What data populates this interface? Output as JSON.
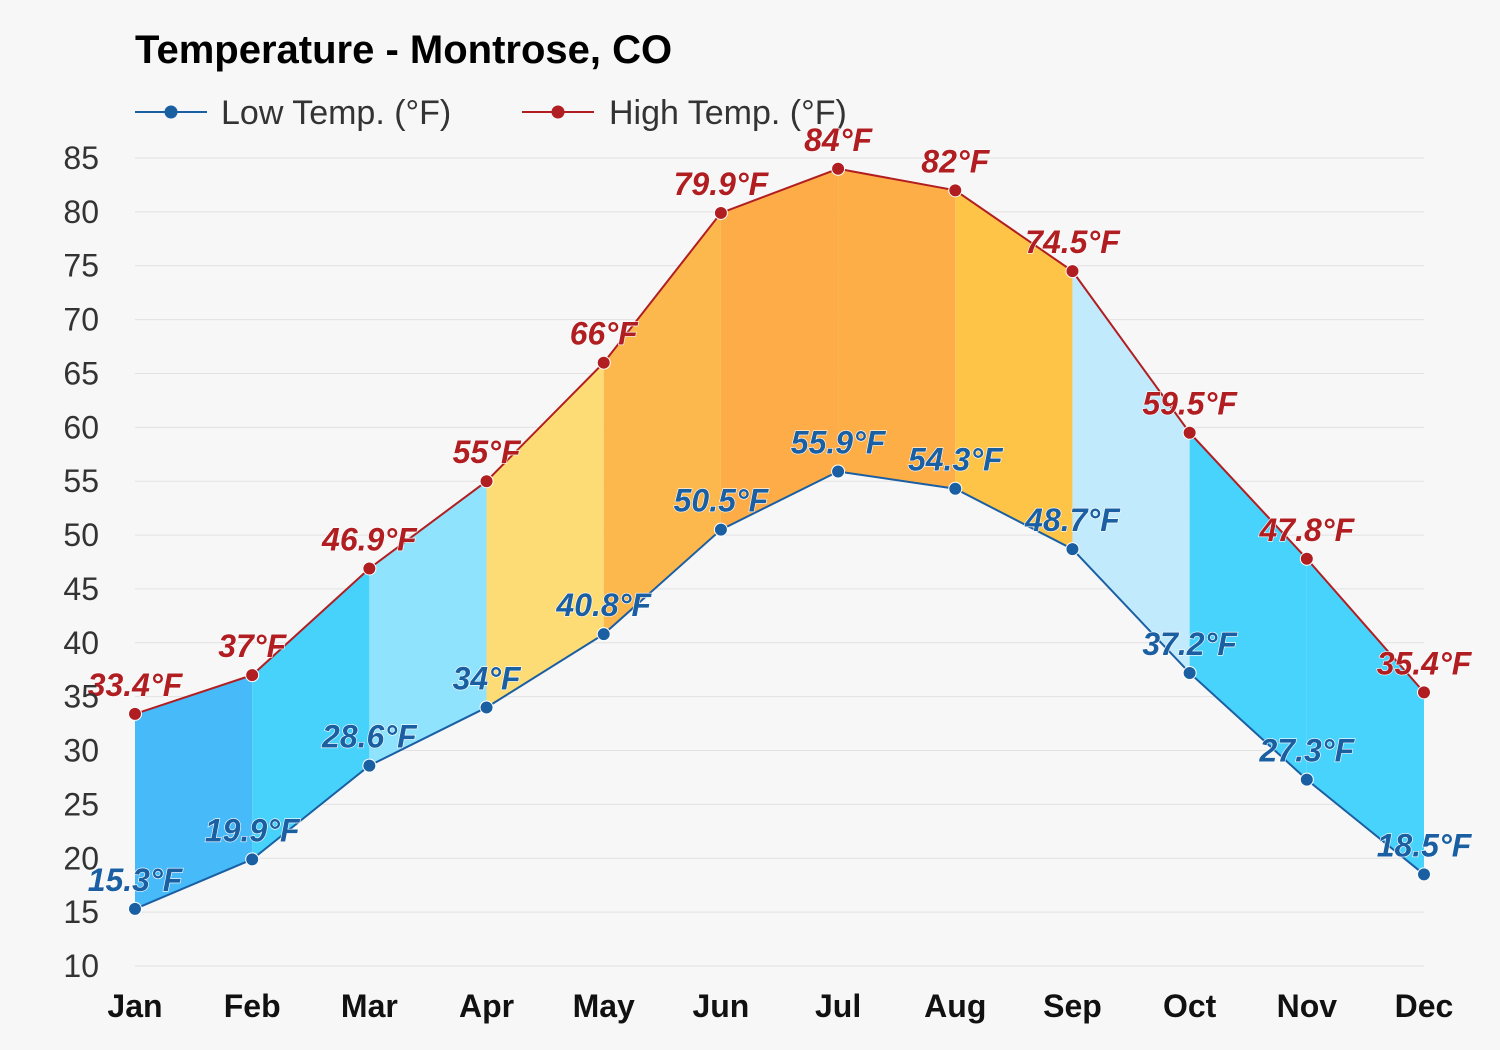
{
  "chart_data": {
    "type": "line",
    "title": "Temperature - Montrose, CO",
    "xlabel": "",
    "ylabel": "",
    "categories": [
      "Jan",
      "Feb",
      "Mar",
      "Apr",
      "May",
      "Jun",
      "Jul",
      "Aug",
      "Sep",
      "Oct",
      "Nov",
      "Dec"
    ],
    "yticks": [
      10,
      15,
      20,
      25,
      30,
      35,
      40,
      45,
      50,
      55,
      60,
      65,
      70,
      75,
      80,
      85
    ],
    "ylim": [
      10,
      85
    ],
    "grid": true,
    "legend_position": "top-left",
    "series": [
      {
        "name": "Low Temp. (°F)",
        "color": "#1b5fa3",
        "values": [
          15.3,
          19.9,
          28.6,
          34,
          40.8,
          50.5,
          55.9,
          54.3,
          48.7,
          37.2,
          27.3,
          18.5
        ],
        "labels": [
          "15.3°F",
          "19.9°F",
          "28.6°F",
          "34°F",
          "40.8°F",
          "50.5°F",
          "55.9°F",
          "54.3°F",
          "48.7°F",
          "37.2°F",
          "27.3°F",
          "18.5°F"
        ]
      },
      {
        "name": "High Temp. (°F)",
        "color": "#b11e22",
        "values": [
          33.4,
          37,
          46.9,
          55,
          66,
          79.9,
          84,
          82,
          74.5,
          59.5,
          47.8,
          35.4
        ],
        "labels": [
          "33.4°F",
          "37°F",
          "46.9°F",
          "55°F",
          "66°F",
          "79.9°F",
          "84°F",
          "82°F",
          "74.5°F",
          "59.5°F",
          "47.8°F",
          "35.4°F"
        ]
      }
    ],
    "band_colors": [
      "#47baf9",
      "#47d2fb",
      "#90e3fc",
      "#fddc75",
      "#fdb84d",
      "#fdac47",
      "#fdae47",
      "#fdc447",
      "#c1ebfd",
      "#47d3fb",
      "#47d3fb",
      "#47b8fb"
    ]
  }
}
